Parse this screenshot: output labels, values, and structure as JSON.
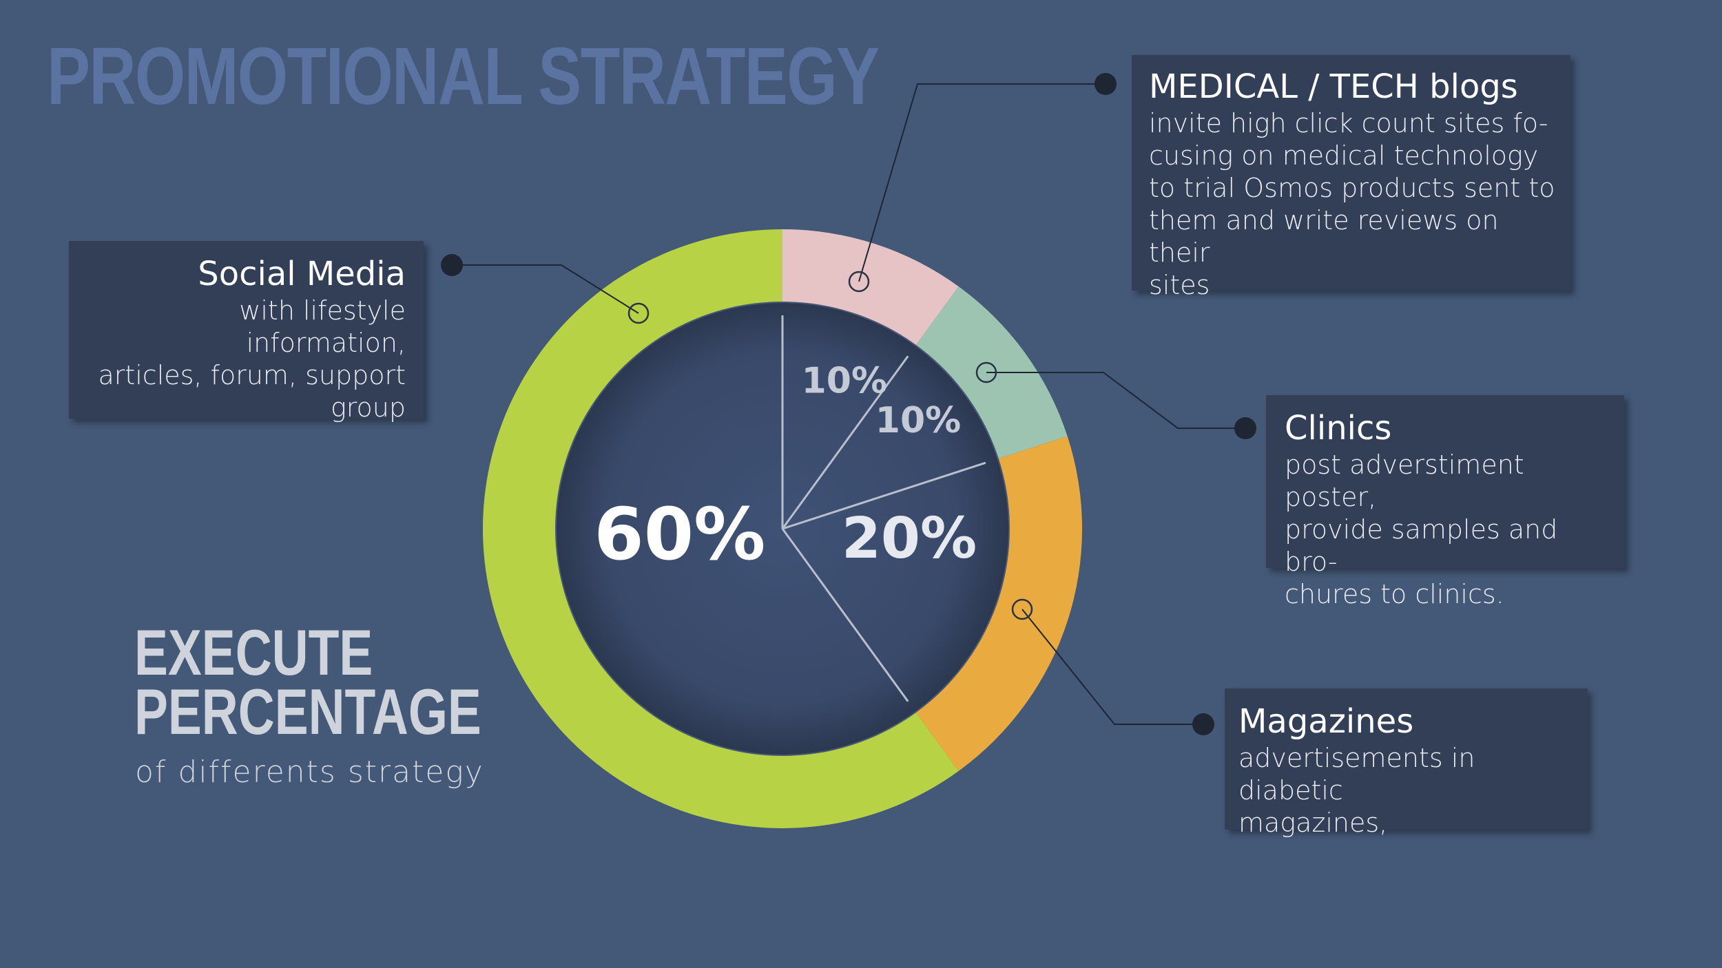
{
  "title": "PROMOTIONAL STRATEGY",
  "execute": {
    "line1": "EXECUTE",
    "line2": "PERCENTAGE",
    "subtitle": "of differents strategy"
  },
  "chart_data": {
    "type": "pie",
    "legend": "callouts",
    "slices": [
      {
        "label": "MEDICAL / TECH blogs",
        "value": 10,
        "display": "10%",
        "color": "#e6c3c4"
      },
      {
        "label": "Clinics",
        "value": 10,
        "display": "10%",
        "color": "#9cc4b1"
      },
      {
        "label": "Magazines",
        "value": 20,
        "display": "20%",
        "color": "#e9aa40"
      },
      {
        "label": "Social Media",
        "value": 60,
        "display": "60%",
        "color": "#b7d244"
      }
    ]
  },
  "cards": {
    "social": {
      "heading": "Social Media",
      "lines": [
        "with lifestyle information,",
        "articles, forum, support",
        "group"
      ]
    },
    "blogs": {
      "heading": "MEDICAL / TECH blogs",
      "lines": [
        "invite high click count sites fo-",
        "cusing on medical technology",
        "to trial Osmos products sent to",
        "them and write reviews on their",
        "sites"
      ]
    },
    "clinics": {
      "heading": "Clinics",
      "lines": [
        "post adverstiment poster,",
        "provide samples and bro-",
        "chures to clinics."
      ]
    },
    "magazines": {
      "heading": "Magazines",
      "lines": [
        "advertisements in diabetic",
        "magazines,"
      ]
    }
  },
  "colors": {
    "background": "#445877",
    "card": "#333f56",
    "inner_circle": "#3a4a66",
    "connector": "#1e2533"
  }
}
